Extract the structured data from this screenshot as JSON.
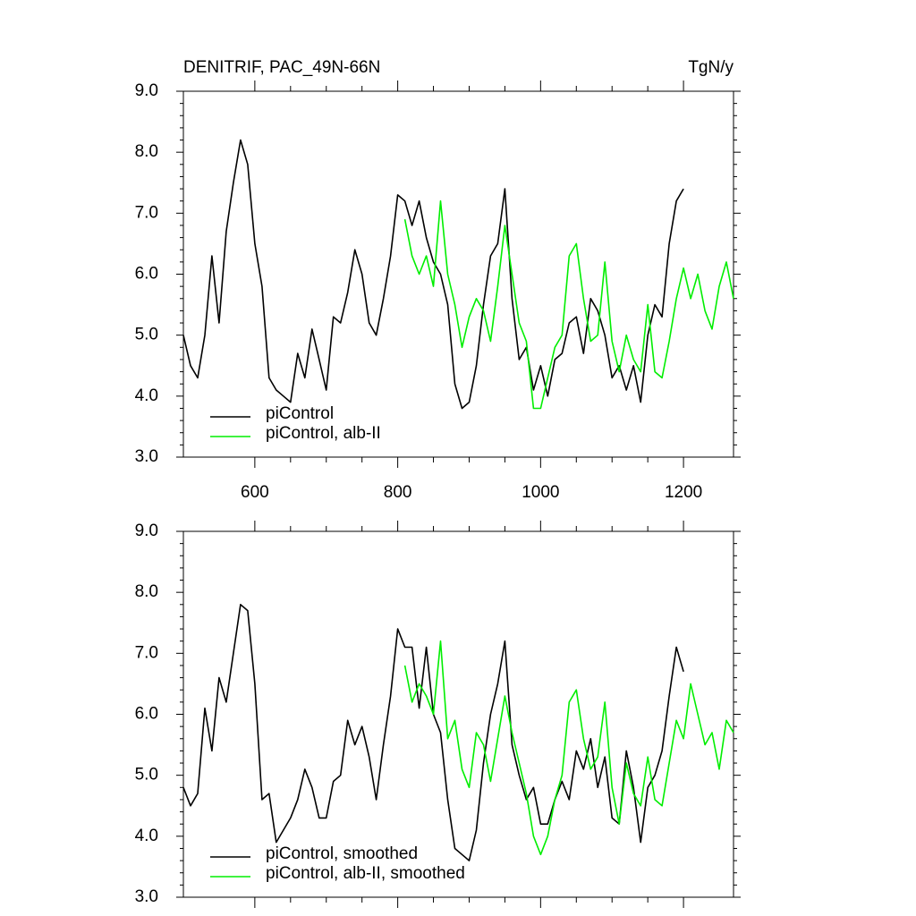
{
  "chart_data": [
    {
      "type": "line",
      "title": "DENITRIF, PAC_49N-66N",
      "units": "TgN/y",
      "x": [
        500,
        510,
        520,
        530,
        540,
        550,
        560,
        570,
        580,
        590,
        600,
        610,
        620,
        630,
        640,
        650,
        660,
        670,
        680,
        690,
        700,
        710,
        720,
        730,
        740,
        750,
        760,
        770,
        780,
        790,
        800,
        810,
        820,
        830,
        840,
        850,
        860,
        870,
        880,
        890,
        900,
        910,
        920,
        930,
        940,
        950,
        960,
        970,
        980,
        990,
        1000,
        1010,
        1020,
        1030,
        1040,
        1050,
        1060,
        1070,
        1080,
        1090,
        1100,
        1110,
        1120,
        1130,
        1140,
        1150,
        1160,
        1170,
        1180,
        1190,
        1200,
        1210,
        1220,
        1230,
        1240,
        1250,
        1260,
        1270
      ],
      "series": [
        {
          "name": "piControl",
          "color": "#000000",
          "values": [
            5.0,
            4.5,
            4.3,
            5.0,
            6.3,
            5.2,
            6.7,
            7.5,
            8.2,
            7.8,
            6.5,
            5.8,
            4.3,
            4.1,
            4.0,
            3.9,
            4.7,
            4.3,
            5.1,
            4.6,
            4.1,
            5.3,
            5.2,
            5.7,
            6.4,
            6.0,
            5.2,
            5.0,
            5.6,
            6.3,
            7.3,
            7.2,
            6.8,
            7.2,
            6.6,
            6.2,
            6.0,
            5.5,
            4.2,
            3.8,
            3.9,
            4.5,
            5.5,
            6.3,
            6.5,
            7.4,
            5.6,
            4.6,
            4.8,
            4.1,
            4.5,
            4.0,
            4.6,
            4.7,
            5.2,
            5.3,
            4.7,
            5.6,
            5.4,
            5.0,
            4.3,
            4.5,
            4.1,
            4.5,
            3.9,
            5.0,
            5.5,
            5.3,
            6.5,
            7.2,
            7.4,
            null,
            null,
            null,
            null,
            null,
            null,
            null
          ]
        },
        {
          "name": "piControl, alb-II",
          "color": "#00ee00",
          "values": [
            null,
            null,
            null,
            null,
            null,
            null,
            null,
            null,
            null,
            null,
            null,
            null,
            null,
            null,
            null,
            null,
            null,
            null,
            null,
            null,
            null,
            null,
            null,
            null,
            null,
            null,
            null,
            null,
            null,
            null,
            null,
            6.9,
            6.3,
            6.0,
            6.3,
            5.8,
            7.2,
            6.0,
            5.5,
            4.8,
            5.3,
            5.6,
            5.4,
            4.9,
            5.8,
            6.8,
            6.0,
            5.2,
            4.9,
            3.8,
            3.8,
            4.3,
            4.8,
            5.0,
            6.3,
            6.5,
            5.6,
            4.9,
            5.0,
            6.2,
            4.9,
            4.4,
            5.0,
            4.6,
            4.4,
            5.5,
            4.4,
            4.3,
            4.9,
            5.6,
            6.1,
            5.6,
            6.0,
            5.4,
            5.1,
            5.8,
            6.2,
            5.6
          ]
        }
      ],
      "xlim": [
        500,
        1270
      ],
      "xticks": [
        600,
        800,
        1000,
        1200
      ],
      "ylim": [
        3,
        9
      ],
      "yticks": [
        {
          "value": 3,
          "label": "3.0"
        },
        {
          "value": 4,
          "label": "4.0"
        },
        {
          "value": 5,
          "label": "5.0"
        },
        {
          "value": 6,
          "label": "6.0"
        },
        {
          "value": 7,
          "label": "7.0"
        },
        {
          "value": 8,
          "label": "8.0"
        },
        {
          "value": 9,
          "label": "9.0"
        }
      ],
      "grid": false,
      "legend": "lower left"
    },
    {
      "type": "line",
      "x": [
        500,
        510,
        520,
        530,
        540,
        550,
        560,
        570,
        580,
        590,
        600,
        610,
        620,
        630,
        640,
        650,
        660,
        670,
        680,
        690,
        700,
        710,
        720,
        730,
        740,
        750,
        760,
        770,
        780,
        790,
        800,
        810,
        820,
        830,
        840,
        850,
        860,
        870,
        880,
        890,
        900,
        910,
        920,
        930,
        940,
        950,
        960,
        970,
        980,
        990,
        1000,
        1010,
        1020,
        1030,
        1040,
        1050,
        1060,
        1070,
        1080,
        1090,
        1100,
        1110,
        1120,
        1130,
        1140,
        1150,
        1160,
        1170,
        1180,
        1190,
        1200,
        1210,
        1220,
        1230,
        1240,
        1250,
        1260,
        1270
      ],
      "series": [
        {
          "name": "piControl, smoothed",
          "color": "#000000",
          "values": [
            4.8,
            4.5,
            4.7,
            6.1,
            5.4,
            6.6,
            6.2,
            7.0,
            7.8,
            7.7,
            6.5,
            4.6,
            4.7,
            3.9,
            4.1,
            4.3,
            4.6,
            5.1,
            4.8,
            4.3,
            4.3,
            4.9,
            5.0,
            5.9,
            5.5,
            5.8,
            5.3,
            4.6,
            5.5,
            6.3,
            7.4,
            7.1,
            7.1,
            6.1,
            7.1,
            6.0,
            5.7,
            4.6,
            3.8,
            3.7,
            3.6,
            4.1,
            5.2,
            6.0,
            6.5,
            7.2,
            5.5,
            5.0,
            4.6,
            4.8,
            4.2,
            4.2,
            4.6,
            4.9,
            4.6,
            5.4,
            5.1,
            5.6,
            4.8,
            5.3,
            4.3,
            4.2,
            5.4,
            4.8,
            3.9,
            4.8,
            5.0,
            5.4,
            6.3,
            7.1,
            6.7,
            null,
            null,
            null,
            null,
            null,
            null,
            null
          ]
        },
        {
          "name": "piControl, alb-II, smoothed",
          "color": "#00ee00",
          "values": [
            null,
            null,
            null,
            null,
            null,
            null,
            null,
            null,
            null,
            null,
            null,
            null,
            null,
            null,
            null,
            null,
            null,
            null,
            null,
            null,
            null,
            null,
            null,
            null,
            null,
            null,
            null,
            null,
            null,
            null,
            null,
            6.8,
            6.2,
            6.5,
            6.3,
            6.0,
            7.2,
            5.6,
            5.9,
            5.1,
            4.8,
            5.7,
            5.5,
            4.9,
            5.6,
            6.3,
            5.7,
            5.2,
            4.7,
            4.0,
            3.7,
            4.0,
            4.6,
            5.0,
            6.2,
            6.4,
            5.6,
            5.1,
            5.3,
            6.2,
            4.8,
            4.2,
            5.2,
            4.7,
            4.5,
            5.3,
            4.6,
            4.5,
            5.2,
            5.9,
            5.6,
            6.5,
            6.0,
            5.5,
            5.7,
            5.1,
            5.9,
            5.7
          ]
        }
      ],
      "xlim": [
        500,
        1270
      ],
      "xticks": [
        600,
        800,
        1000,
        1200
      ],
      "xtick_labels": false,
      "ylim": [
        3,
        9
      ],
      "yticks": [
        {
          "value": 3,
          "label": "3.0"
        },
        {
          "value": 4,
          "label": "4.0"
        },
        {
          "value": 5,
          "label": "5.0"
        },
        {
          "value": 6,
          "label": "6.0"
        },
        {
          "value": 7,
          "label": "7.0"
        },
        {
          "value": 8,
          "label": "8.0"
        },
        {
          "value": 9,
          "label": "9.0"
        }
      ],
      "grid": false,
      "legend": "lower left"
    }
  ]
}
